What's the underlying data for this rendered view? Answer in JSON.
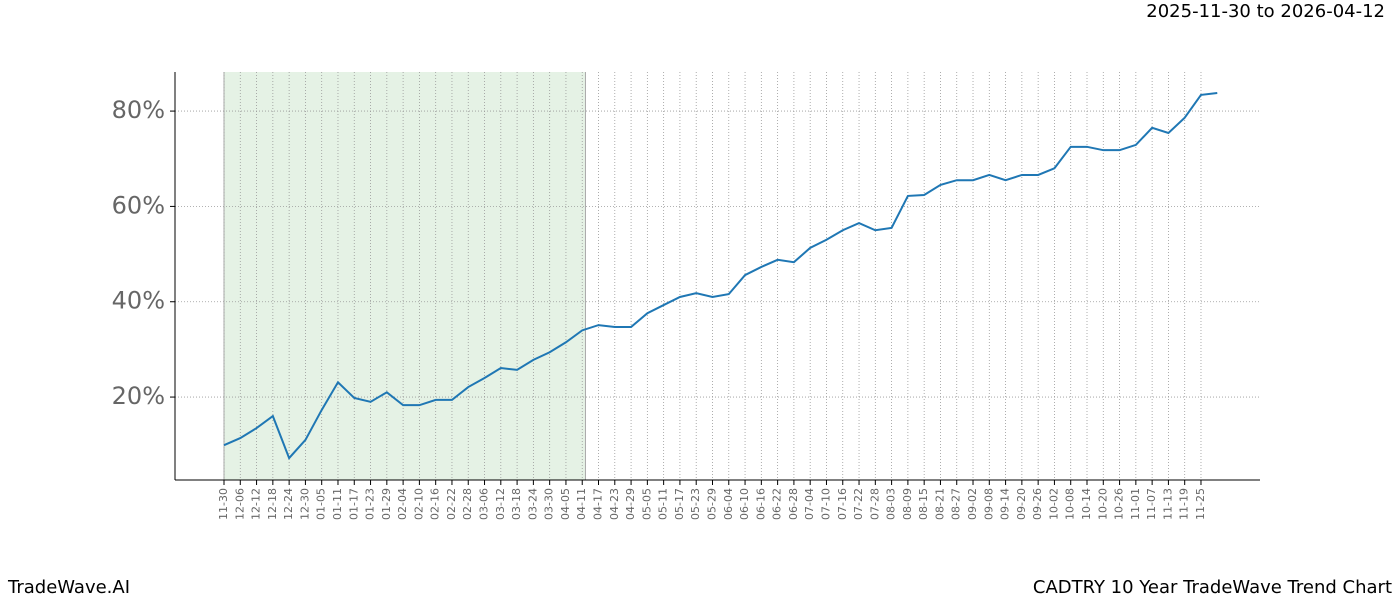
{
  "chart_data": {
    "type": "line",
    "title": "2025-11-30 to 2026-04-12",
    "footer_left": "TradeWave.AI",
    "footer_right": "CADTRY 10 Year TradeWave Trend Chart",
    "categories": [
      "11-30",
      "12-06",
      "12-12",
      "12-18",
      "12-24",
      "12-30",
      "01-05",
      "01-11",
      "01-17",
      "01-23",
      "01-29",
      "02-04",
      "02-10",
      "02-16",
      "02-22",
      "02-28",
      "03-06",
      "03-12",
      "03-18",
      "03-24",
      "03-30",
      "04-05",
      "04-11",
      "04-17",
      "04-23",
      "04-29",
      "05-05",
      "05-11",
      "05-17",
      "05-23",
      "05-29",
      "06-04",
      "06-10",
      "06-16",
      "06-22",
      "06-28",
      "07-04",
      "07-10",
      "07-16",
      "07-22",
      "07-28",
      "08-03",
      "08-09",
      "08-15",
      "08-21",
      "08-27",
      "09-02",
      "09-08",
      "09-14",
      "09-20",
      "09-26",
      "10-02",
      "10-08",
      "10-14",
      "10-20",
      "10-26",
      "11-01",
      "11-07",
      "11-13",
      "11-19",
      "11-25",
      null
    ],
    "values": [
      9.9,
      11.4,
      13.5,
      16,
      7.2,
      11,
      17.3,
      23.1,
      19.8,
      19,
      21,
      18.3,
      18.3,
      19.4,
      19.4,
      22.1,
      24,
      26.1,
      25.7,
      27.8,
      29.4,
      31.5,
      34,
      35.1,
      34.7,
      34.7,
      37.6,
      39.3,
      41,
      41.8,
      41,
      41.6,
      45.6,
      47.3,
      48.8,
      48.3,
      51.3,
      53,
      55,
      56.5,
      55,
      55.5,
      62.2,
      62.4,
      64.5,
      65.5,
      65.5,
      66.6,
      65.5,
      66.6,
      66.6,
      68,
      72.5,
      72.5,
      71.8,
      71.8,
      72.9,
      76.5,
      75.4,
      78.6,
      83.4,
      83.8
    ],
    "color": "#1f77b4",
    "ylim": [
      2.6,
      88.2
    ],
    "yticks": [
      {
        "value": 20,
        "label": "20%"
      },
      {
        "value": 40,
        "label": "40%"
      },
      {
        "value": 60,
        "label": "60%"
      },
      {
        "value": 80,
        "label": "80%"
      }
    ],
    "grid": true
  }
}
